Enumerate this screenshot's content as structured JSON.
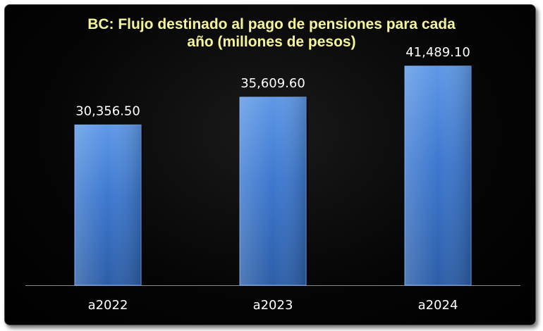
{
  "chart_data": {
    "type": "bar",
    "title_lines": [
      "BC: Flujo destinado al pago de pensiones para cada",
      "año (millones de pesos)"
    ],
    "categories": [
      "a2022",
      "a2023",
      "a2024"
    ],
    "values": [
      30356.5,
      35609.6,
      41489.1
    ],
    "value_labels": [
      "30,356.50",
      "35,609.60",
      "41,489.10"
    ],
    "xlabel": "",
    "ylabel": "",
    "ylim": [
      0,
      50000
    ],
    "grid": false,
    "legend": "none",
    "colors": {
      "bar_top": "#5e98e6",
      "bar_mid": "#3d78cf",
      "bar_bottom": "#2c5ea8",
      "title": "#f6f49a",
      "text": "#ffffff",
      "background": "#000000",
      "axis": "#8a8a8a"
    }
  }
}
